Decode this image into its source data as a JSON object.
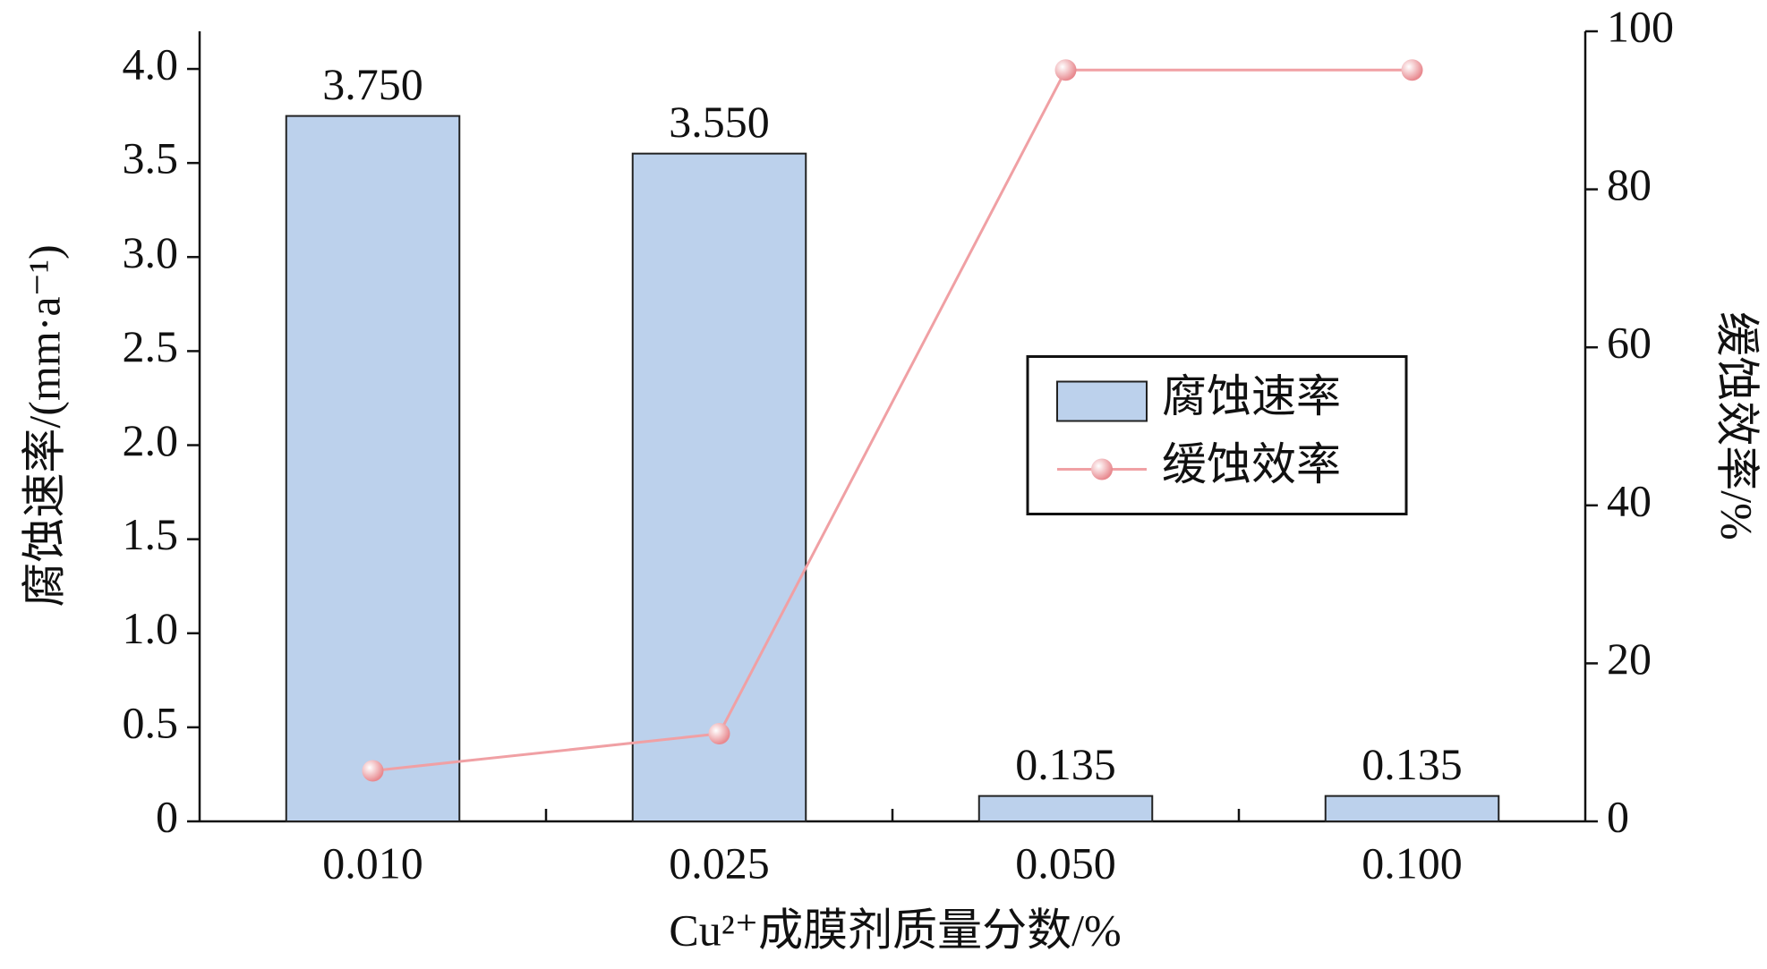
{
  "chart_data": {
    "type": "bar",
    "x_label": "Cu²⁺成膜剂质量分数/%",
    "y_label": "腐蚀速率/(mm·a⁻¹)",
    "y2_label": "缓蚀效率/%",
    "categories": [
      "0.010",
      "0.025",
      "0.050",
      "0.100"
    ],
    "series": [
      {
        "name": "腐蚀速率",
        "type": "bar",
        "color": "#bcd1ec",
        "values": [
          3.75,
          3.55,
          0.135,
          0.135
        ],
        "value_labels": [
          "3.750",
          "3.550",
          "0.135",
          "0.135"
        ]
      },
      {
        "name": "缓蚀效率",
        "type": "line",
        "axis": "y2",
        "color": "#f0a0a4",
        "values": [
          6.4,
          11.1,
          95.1,
          95.1
        ]
      }
    ],
    "ylim": [
      0,
      4.2
    ],
    "yticks": [
      0,
      0.5,
      {
        "value": 1,
        "label": "1.0"
      },
      1.5,
      {
        "value": 2,
        "label": "2.0"
      },
      2.5,
      {
        "value": 3,
        "label": "3.0"
      },
      3.5,
      {
        "value": 4,
        "label": "4.0"
      }
    ],
    "y2lim": [
      0,
      100
    ],
    "y2ticks": [
      0,
      20,
      40,
      60,
      80,
      100
    ],
    "legend": "center right",
    "grid": false
  }
}
